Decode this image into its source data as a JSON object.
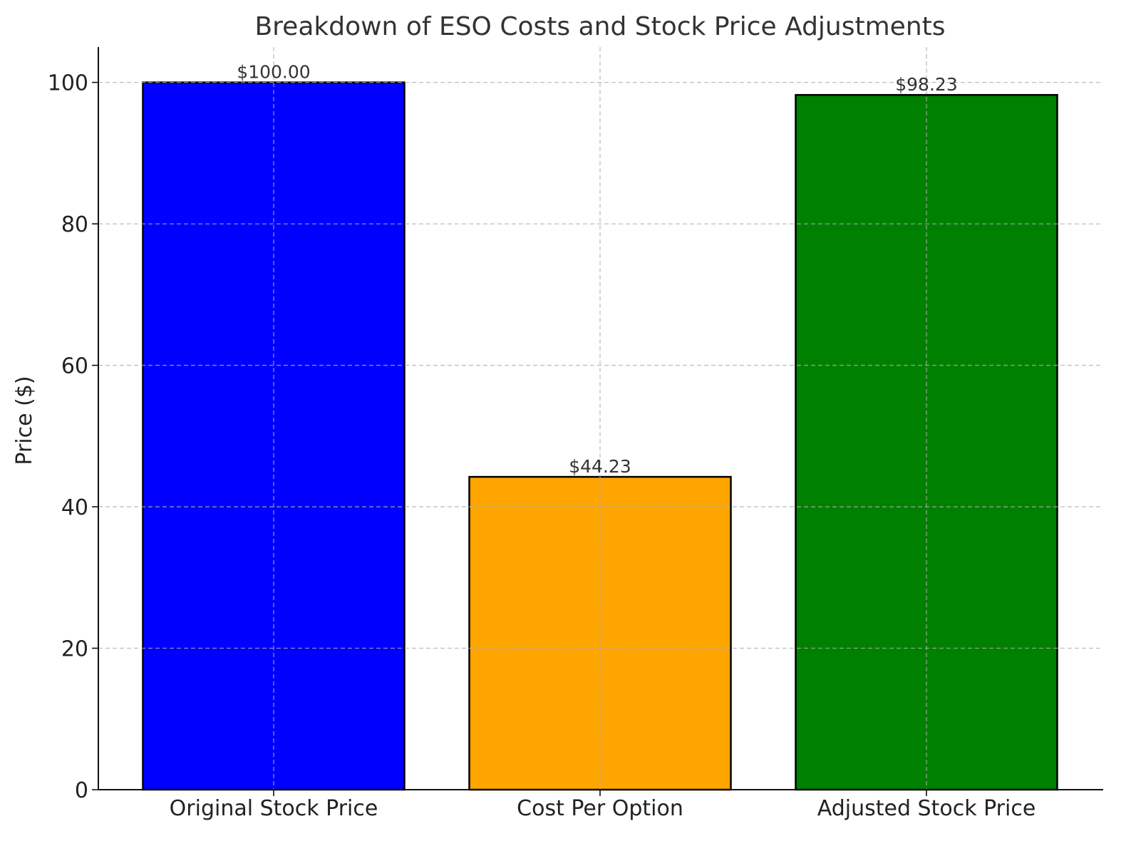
{
  "chart_data": {
    "type": "bar",
    "title": "Breakdown of ESO Costs and Stock Price Adjustments",
    "xlabel": "",
    "ylabel": "Price ($)",
    "categories": [
      "Original Stock Price",
      "Cost Per Option",
      "Adjusted Stock Price"
    ],
    "values": [
      100.0,
      44.23,
      98.23
    ],
    "data_labels": [
      "$100.00",
      "$44.23",
      "$98.23"
    ],
    "bar_colors": [
      "#0000ff",
      "#ffa500",
      "#008000"
    ],
    "edge_color": "#000000",
    "ylim": [
      0,
      105
    ],
    "yticks": [
      0,
      20,
      40,
      60,
      80,
      100
    ],
    "grid": true,
    "legend": "none"
  }
}
